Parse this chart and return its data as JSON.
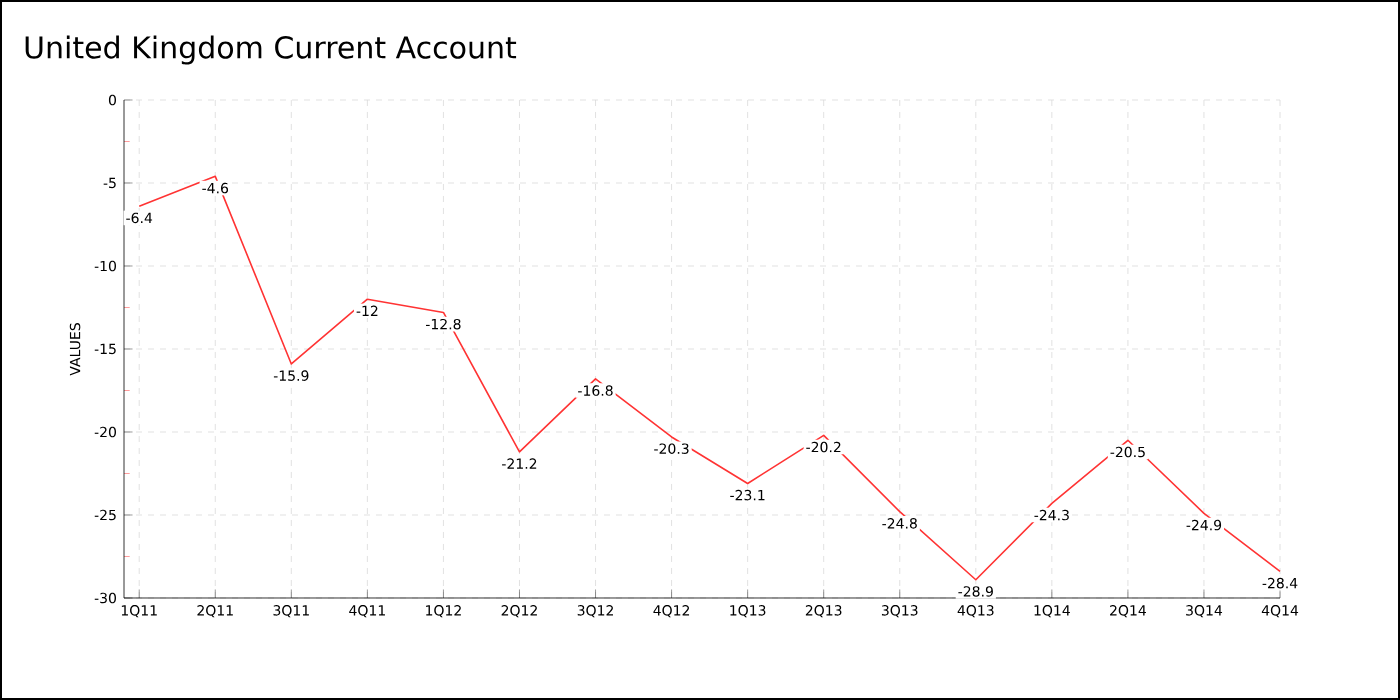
{
  "chart_data": {
    "type": "line",
    "title": "United Kingdom Current Account",
    "ylabel": "VALUES",
    "categories": [
      "1Q11",
      "2Q11",
      "3Q11",
      "4Q11",
      "1Q12",
      "2Q12",
      "3Q12",
      "4Q12",
      "1Q13",
      "2Q13",
      "3Q13",
      "4Q13",
      "1Q14",
      "2Q14",
      "3Q14",
      "4Q14"
    ],
    "series": [
      {
        "color": "#ff3333",
        "values": [
          -6.4,
          -4.6,
          -15.9,
          -12,
          -12.8,
          -21.2,
          -16.8,
          -20.3,
          -23.1,
          -20.2,
          -24.8,
          -28.9,
          -24.3,
          -20.5,
          -24.9,
          -28.4
        ]
      }
    ],
    "ylim": [
      -30,
      0
    ],
    "yticks": [
      -30,
      -25,
      -20,
      -15,
      -10,
      -5,
      0
    ],
    "grid": true,
    "data_labels": true,
    "marker": "none",
    "line_style": "solid"
  }
}
